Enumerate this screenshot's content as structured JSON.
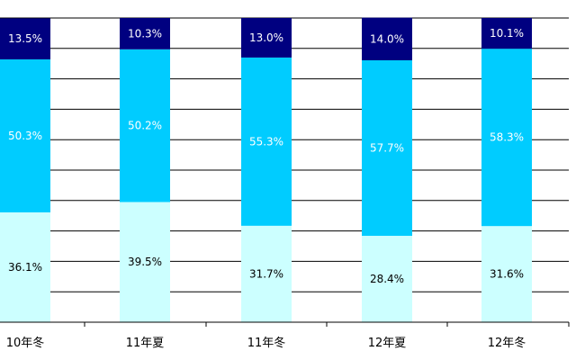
{
  "chart_data": {
    "type": "bar",
    "stacked": true,
    "percent_stacked": true,
    "categories": [
      "10年冬",
      "11年夏",
      "11年冬",
      "12年夏",
      "12年冬"
    ],
    "series": [
      {
        "values": [
          36.1,
          39.5,
          31.7,
          28.4,
          31.6
        ],
        "labels": [
          "36.1%",
          "39.5%",
          "31.7%",
          "28.4%",
          "31.6%"
        ],
        "color": "#ccffff",
        "label_color": "#000000"
      },
      {
        "values": [
          50.3,
          50.2,
          55.3,
          57.7,
          58.3
        ],
        "labels": [
          "50.3%",
          "50.2%",
          "55.3%",
          "57.7%",
          "58.3%"
        ],
        "color": "#00ccff",
        "label_color": "#ffffff"
      },
      {
        "values": [
          13.5,
          10.3,
          13.0,
          14.0,
          10.1
        ],
        "labels": [
          "13.5%",
          "10.3%",
          "13.0%",
          "14.0%",
          "10.1%"
        ],
        "color": "#000080",
        "label_color": "#ffffff"
      }
    ],
    "ylim": [
      0,
      100
    ],
    "grid": true,
    "legend": "none"
  }
}
